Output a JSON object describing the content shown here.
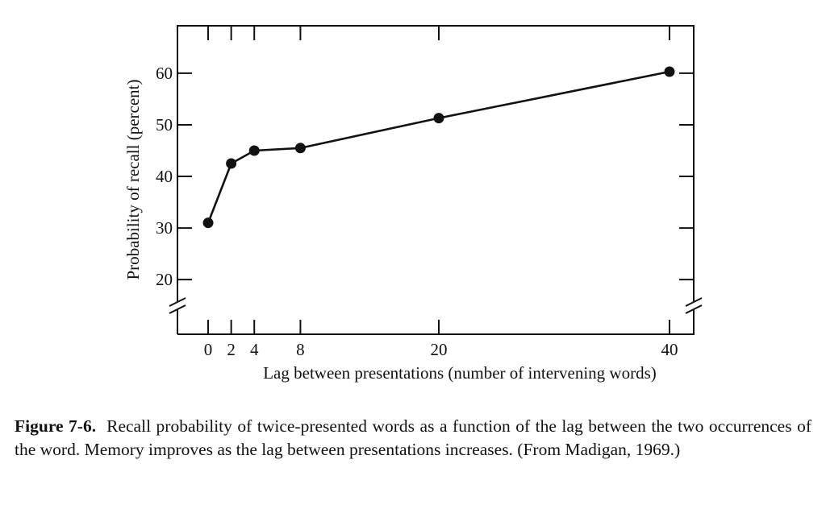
{
  "chart_data": {
    "type": "line",
    "y_label": "Probability of recall (percent)",
    "x_label": "Lag between presentations (number of intervening words)",
    "x": [
      0,
      2,
      4,
      8,
      20,
      40
    ],
    "series": [
      {
        "color": "#111111",
        "values": [
          31,
          42.5,
          45,
          45.5,
          51.3,
          60.3
        ]
      }
    ],
    "xlim": [
      -2.66,
      42.1
    ],
    "xticks": [
      0,
      2,
      4,
      8,
      20,
      40
    ],
    "ylim": [
      9.4,
      69.2
    ],
    "yticks": [
      20,
      30,
      40,
      50,
      60
    ],
    "caption_label": "Figure 7-6.",
    "caption": "Recall probability of twice-presented words as a function of the lag between the two occurrences of the word. Memory improves as the lag between presentations increases. (From Madigan, 1969.)"
  }
}
